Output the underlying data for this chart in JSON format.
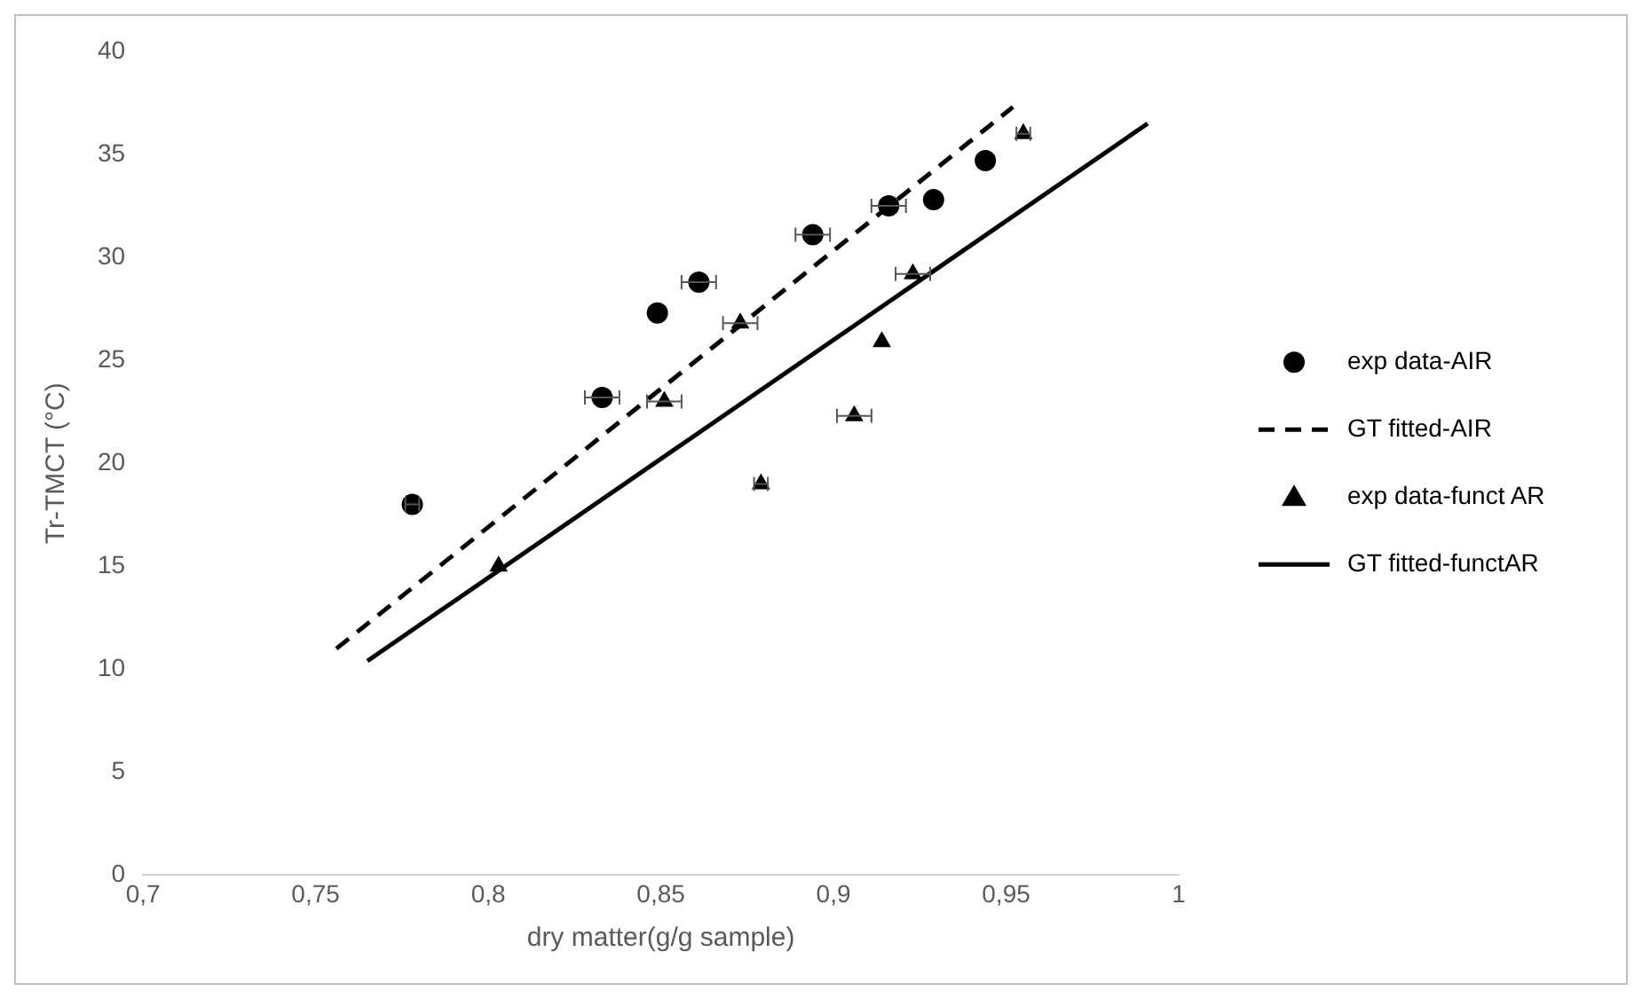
{
  "chart_data": {
    "type": "scatter",
    "xlabel": "dry matter(g/g sample)",
    "ylabel": "Tr-TMCT (°C)",
    "xlim": [
      0.7,
      1
    ],
    "xticks": [
      {
        "value": 0.7,
        "label": "0,7"
      },
      {
        "value": 0.75,
        "label": "0,75"
      },
      {
        "value": 0.8,
        "label": "0,8"
      },
      {
        "value": 0.85,
        "label": "0,85"
      },
      {
        "value": 0.9,
        "label": "0,9"
      },
      {
        "value": 0.95,
        "label": "0,95"
      },
      {
        "value": 1,
        "label": "1"
      }
    ],
    "ylim": [
      0,
      40
    ],
    "yticks": [
      0,
      5,
      10,
      15,
      20,
      25,
      30,
      35,
      40
    ],
    "grid": false,
    "legend": "right",
    "series": [
      {
        "name": "exp data-AIR",
        "type": "scatter",
        "marker": "circle",
        "color": "#000000",
        "x": [
          0.778,
          0.833,
          0.849,
          0.861,
          0.894,
          0.916,
          0.929,
          0.944
        ],
        "values": [
          18,
          23.2,
          27.3,
          28.8,
          31.1,
          32.5,
          32.8,
          34.7
        ],
        "xerrors": [
          0.002,
          0.005,
          null,
          0.005,
          0.005,
          0.005,
          null,
          null
        ]
      },
      {
        "name": "GT fitted-AIR",
        "type": "line",
        "marker": "none",
        "line_style": "dashed",
        "color": "#000000",
        "x": [
          0.756,
          0.952
        ],
        "values": [
          11.0,
          37.3
        ]
      },
      {
        "name": "exp data-funct AR",
        "type": "scatter",
        "marker": "triangle",
        "color": "#000000",
        "x": [
          0.803,
          0.851,
          0.873,
          0.879,
          0.906,
          0.914,
          0.923,
          0.955
        ],
        "values": [
          15,
          23,
          26.8,
          19,
          22.3,
          25.9,
          29.2,
          36
        ],
        "xerrors": [
          null,
          0.005,
          0.005,
          0.002,
          0.005,
          null,
          0.005,
          0.002
        ]
      },
      {
        "name": "GT fitted-functAR",
        "type": "line",
        "marker": "none",
        "line_style": "solid",
        "color": "#000000",
        "x": [
          0.765,
          0.991
        ],
        "values": [
          10.4,
          36.5
        ]
      }
    ]
  }
}
